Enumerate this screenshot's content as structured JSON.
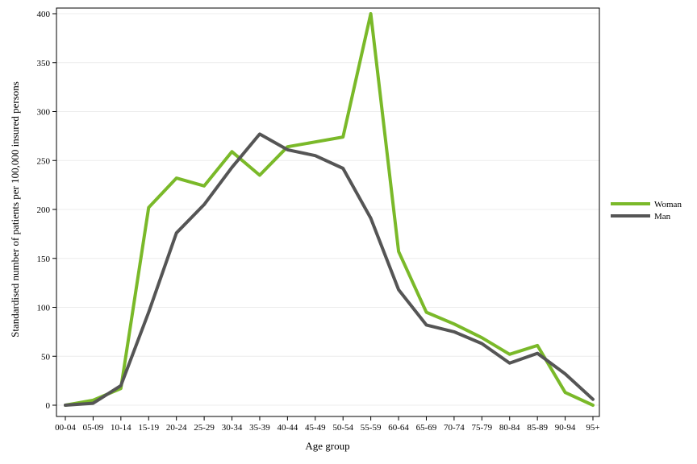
{
  "chart_data": {
    "type": "line",
    "title": "",
    "xlabel": "Age group",
    "ylabel": "Standardised number of patients per 100,000 insured persons",
    "categories": [
      "00-04",
      "05-09",
      "10-14",
      "15-19",
      "20-24",
      "25-29",
      "30-34",
      "35-39",
      "40-44",
      "45-49",
      "50-54",
      "55-59",
      "60-64",
      "65-69",
      "70-74",
      "75-79",
      "80-84",
      "85-89",
      "90-94",
      "95+"
    ],
    "ylim": [
      0,
      400
    ],
    "yticks": [
      "0",
      "50",
      "100",
      "150",
      "200",
      "250",
      "300",
      "350",
      "400"
    ],
    "grid": "horizontal",
    "legend_position": "right",
    "series": [
      {
        "name": "Woman",
        "color": "#7ab929",
        "values": [
          0,
          5,
          17,
          202,
          232,
          224,
          259,
          235,
          264,
          269,
          274,
          400,
          157,
          95,
          83,
          69,
          52,
          61,
          13,
          0
        ]
      },
      {
        "name": "Man",
        "color": "#555555",
        "values": [
          0,
          2,
          20,
          95,
          176,
          205,
          243,
          277,
          261,
          255,
          242,
          191,
          118,
          82,
          75,
          63,
          43,
          53,
          32,
          6
        ]
      }
    ]
  }
}
